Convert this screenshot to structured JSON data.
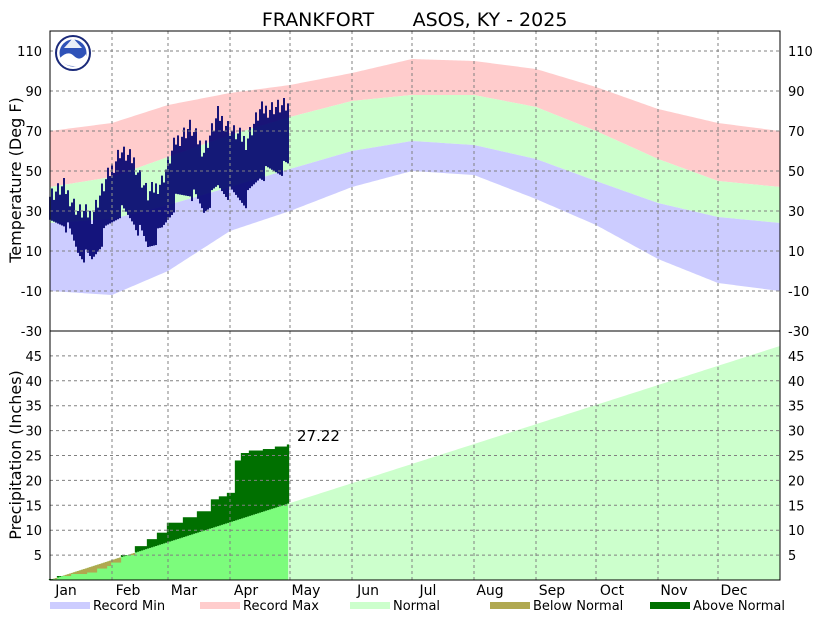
{
  "chart_data": {
    "type": "area",
    "title_station": "FRANKFORT",
    "title_suffix": "ASOS, KY - 2025",
    "temperature": {
      "ylabel": "Temperature (Deg F)",
      "ylim": [
        -30,
        120
      ],
      "ticks": [
        -30,
        -10,
        10,
        30,
        50,
        70,
        90,
        110
      ],
      "normal_low_anchors": {
        "day": [
          1,
          32,
          60,
          91,
          121,
          152,
          182,
          213,
          244,
          274,
          305,
          335,
          366
        ],
        "value": [
          24,
          26,
          33,
          42,
          51,
          60,
          65,
          63,
          56,
          45,
          34,
          27,
          24
        ]
      },
      "normal_high_anchors": {
        "day": [
          1,
          32,
          60,
          91,
          121,
          152,
          182,
          213,
          244,
          274,
          305,
          335,
          366
        ],
        "value": [
          42,
          47,
          57,
          68,
          77,
          85,
          88,
          88,
          82,
          70,
          56,
          45,
          42
        ]
      },
      "record_max_anchors": {
        "day": [
          1,
          32,
          60,
          91,
          121,
          152,
          182,
          213,
          244,
          274,
          305,
          335,
          366
        ],
        "value": [
          70,
          74,
          83,
          89,
          93,
          99,
          106,
          105,
          101,
          92,
          81,
          74,
          70
        ]
      },
      "record_min_anchors": {
        "day": [
          1,
          32,
          60,
          91,
          121,
          152,
          182,
          213,
          244,
          274,
          305,
          335,
          366
        ],
        "value": [
          -10,
          -12,
          0,
          20,
          30,
          42,
          50,
          48,
          36,
          23,
          6,
          -6,
          -10
        ]
      },
      "observed_high_weekly": {
        "day": [
          1,
          8,
          15,
          22,
          29,
          36,
          43,
          50,
          57,
          64,
          71,
          78,
          85,
          92,
          99,
          106,
          113,
          120
        ],
        "value": [
          38,
          42,
          30,
          28,
          45,
          60,
          55,
          38,
          45,
          65,
          72,
          60,
          78,
          70,
          65,
          80,
          82,
          82
        ]
      },
      "observed_low_weekly": {
        "day": [
          1,
          8,
          15,
          22,
          29,
          36,
          43,
          50,
          57,
          64,
          71,
          78,
          85,
          92,
          99,
          106,
          113,
          120
        ],
        "value": [
          22,
          25,
          10,
          5,
          20,
          30,
          25,
          12,
          20,
          35,
          40,
          30,
          42,
          38,
          35,
          48,
          50,
          52
        ]
      },
      "observed_last_day": 120
    },
    "precipitation": {
      "ylabel": "Precipitation (Inches)",
      "ylim": [
        0,
        50
      ],
      "ticks": [
        5,
        10,
        15,
        20,
        25,
        30,
        35,
        40,
        45
      ],
      "normal_total": 47,
      "observed_cumulative": {
        "day": [
          1,
          5,
          12,
          20,
          25,
          30,
          32,
          37,
          44,
          50,
          55,
          60,
          68,
          75,
          82,
          86,
          90,
          94,
          97,
          101,
          108,
          114,
          120
        ],
        "value": [
          0.2,
          0.8,
          1.2,
          1.5,
          2.3,
          2.8,
          3.5,
          5.0,
          6.8,
          8.2,
          9.5,
          11.5,
          12.6,
          13.8,
          16.2,
          16.8,
          17.5,
          24.0,
          25.5,
          26.0,
          26.3,
          26.8,
          27.22
        ]
      },
      "last_value_label": "27.22",
      "last_day": 120
    },
    "months": [
      "Jan",
      "Feb",
      "Mar",
      "Apr",
      "May",
      "Jun",
      "Jul",
      "Aug",
      "Sep",
      "Oct",
      "Nov",
      "Dec"
    ],
    "month_start_days": [
      1,
      32,
      60,
      91,
      121,
      152,
      182,
      213,
      244,
      274,
      305,
      335
    ],
    "legend": [
      "Record Min",
      "Record Max",
      "Normal",
      "Below Normal",
      "Above Normal"
    ],
    "colors": {
      "record_min": "#ccccff",
      "record_max": "#ffcccc",
      "normal": "#ccffcc",
      "normal_to_date": "#7cfc7c",
      "below_normal": "#b0a850",
      "above_normal": "#007000",
      "observed": "#00006e",
      "grid": "#808080"
    }
  }
}
